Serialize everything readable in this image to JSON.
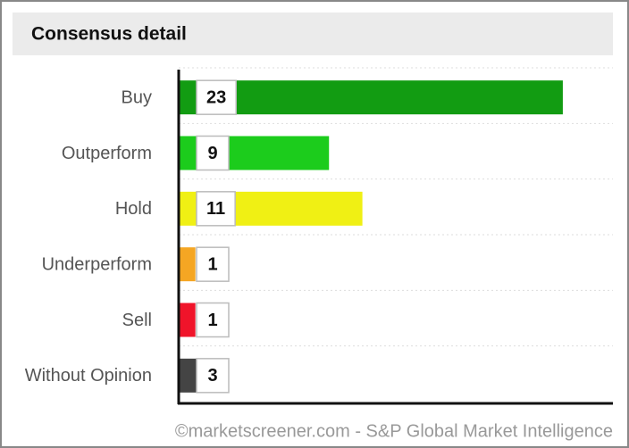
{
  "chart_data": {
    "type": "bar",
    "orientation": "horizontal",
    "title": "Consensus detail",
    "categories": [
      "Buy",
      "Outperform",
      "Hold",
      "Underperform",
      "Sell",
      "Without Opinion"
    ],
    "values": [
      23,
      9,
      11,
      1,
      1,
      3
    ],
    "colors": [
      "#129c12",
      "#1ccc1c",
      "#f0f014",
      "#f5a623",
      "#f0142a",
      "#444444"
    ],
    "xlim": [
      0,
      26
    ],
    "grid": true,
    "source": "©marketscreener.com - S&P Global Market Intelligence"
  }
}
